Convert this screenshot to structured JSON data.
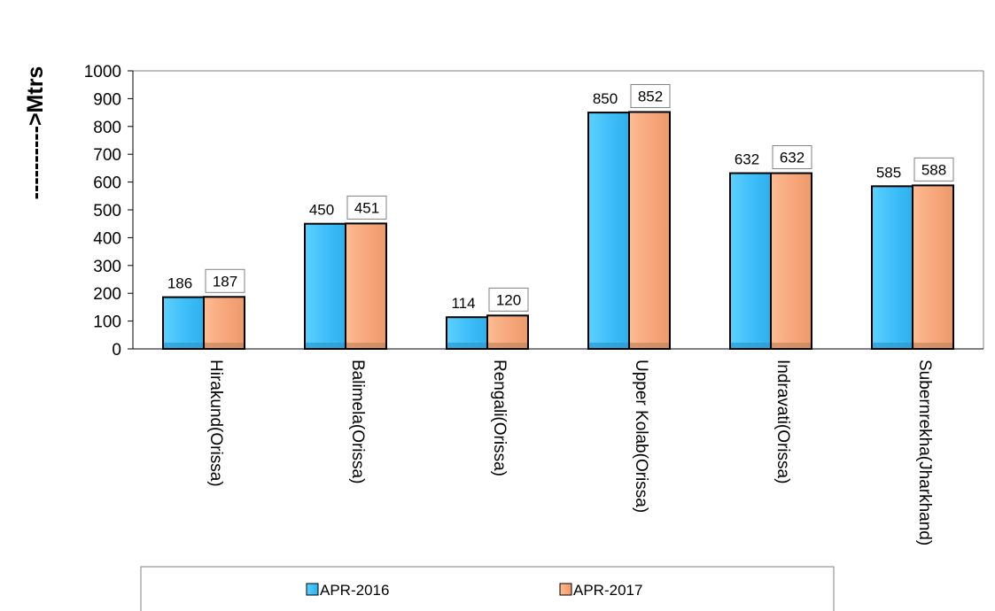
{
  "chart_data": {
    "type": "bar",
    "title": "",
    "xlabel": "",
    "ylabel": "---------->Mtrs",
    "ylim": [
      0,
      1000
    ],
    "yticks": [
      0,
      100,
      200,
      300,
      400,
      500,
      600,
      700,
      800,
      900,
      1000
    ],
    "categories": [
      "Hirakund(Orissa)",
      "Balimela(Orissa)",
      "Rengali(Orissa)",
      "Upper Kolab(Orissa)",
      "Indravati(Orissa)",
      "Subernrekha(Jharkhand)"
    ],
    "series": [
      {
        "name": "APR-2016",
        "values": [
          186,
          450,
          114,
          850,
          632,
          585
        ],
        "color": "#4fc3f7"
      },
      {
        "name": "APR-2017",
        "values": [
          187,
          451,
          120,
          852,
          632,
          588
        ],
        "color": "#f5a67a"
      }
    ],
    "grid": false,
    "legend": "bottom"
  }
}
